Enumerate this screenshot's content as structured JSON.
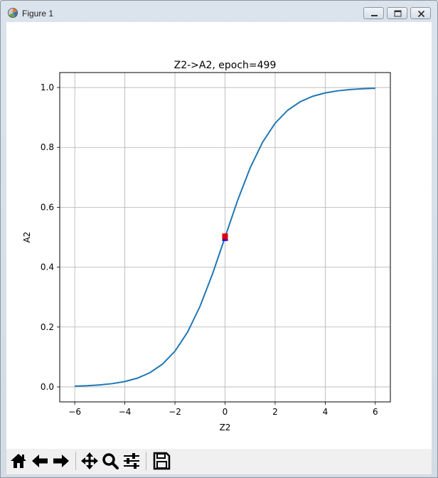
{
  "window": {
    "title": "Figure 1",
    "icons": {
      "app": "matplotlib-figure-icon",
      "minimize": "minimize-icon",
      "maximize": "maximize-icon",
      "close": "close-icon"
    }
  },
  "toolbar": {
    "buttons": [
      {
        "name": "home-button",
        "icon": "home-icon"
      },
      {
        "name": "back-button",
        "icon": "arrow-left-icon"
      },
      {
        "name": "forward-button",
        "icon": "arrow-right-icon"
      },
      {
        "name": "pan-button",
        "icon": "move-icon"
      },
      {
        "name": "zoom-button",
        "icon": "magnifier-icon"
      },
      {
        "name": "configure-subplots-button",
        "icon": "sliders-icon"
      },
      {
        "name": "save-button",
        "icon": "floppy-disk-icon"
      }
    ]
  },
  "chart_data": {
    "type": "line",
    "title": "Z2->A2, epoch=499",
    "xlabel": "Z2",
    "ylabel": "A2",
    "xlim": [
      -6.6,
      6.6
    ],
    "ylim": [
      -0.05,
      1.05
    ],
    "xticks": [
      -6,
      -4,
      -2,
      0,
      2,
      4,
      6
    ],
    "xtick_labels": [
      "−6",
      "−4",
      "−2",
      "0",
      "2",
      "4",
      "6"
    ],
    "yticks": [
      0.0,
      0.2,
      0.4,
      0.6,
      0.8,
      1.0
    ],
    "ytick_labels": [
      "0.0",
      "0.2",
      "0.4",
      "0.6",
      "0.8",
      "1.0"
    ],
    "grid": true,
    "line_color": "#1f77b4",
    "series": [
      {
        "x": [
          -6.0,
          -5.5,
          -5.0,
          -4.5,
          -4.0,
          -3.5,
          -3.0,
          -2.5,
          -2.0,
          -1.5,
          -1.0,
          -0.5,
          0.0,
          0.5,
          1.0,
          1.5,
          2.0,
          2.5,
          3.0,
          3.5,
          4.0,
          4.5,
          5.0,
          5.5,
          6.0
        ],
        "y": [
          0.0025,
          0.0041,
          0.0067,
          0.011,
          0.018,
          0.0293,
          0.0474,
          0.0759,
          0.1192,
          0.1824,
          0.2689,
          0.3775,
          0.5,
          0.6225,
          0.7311,
          0.8176,
          0.8808,
          0.9241,
          0.9526,
          0.9707,
          0.982,
          0.989,
          0.9933,
          0.9959,
          0.9975
        ]
      }
    ],
    "markers": [
      {
        "x": 0.0,
        "y": 0.497,
        "color": "#0000ff",
        "shape": "square"
      },
      {
        "x": 0.0,
        "y": 0.5,
        "color": "#6600aa",
        "shape": "square"
      },
      {
        "x": 0.0,
        "y": 0.503,
        "color": "#dd0000",
        "shape": "square"
      }
    ]
  }
}
